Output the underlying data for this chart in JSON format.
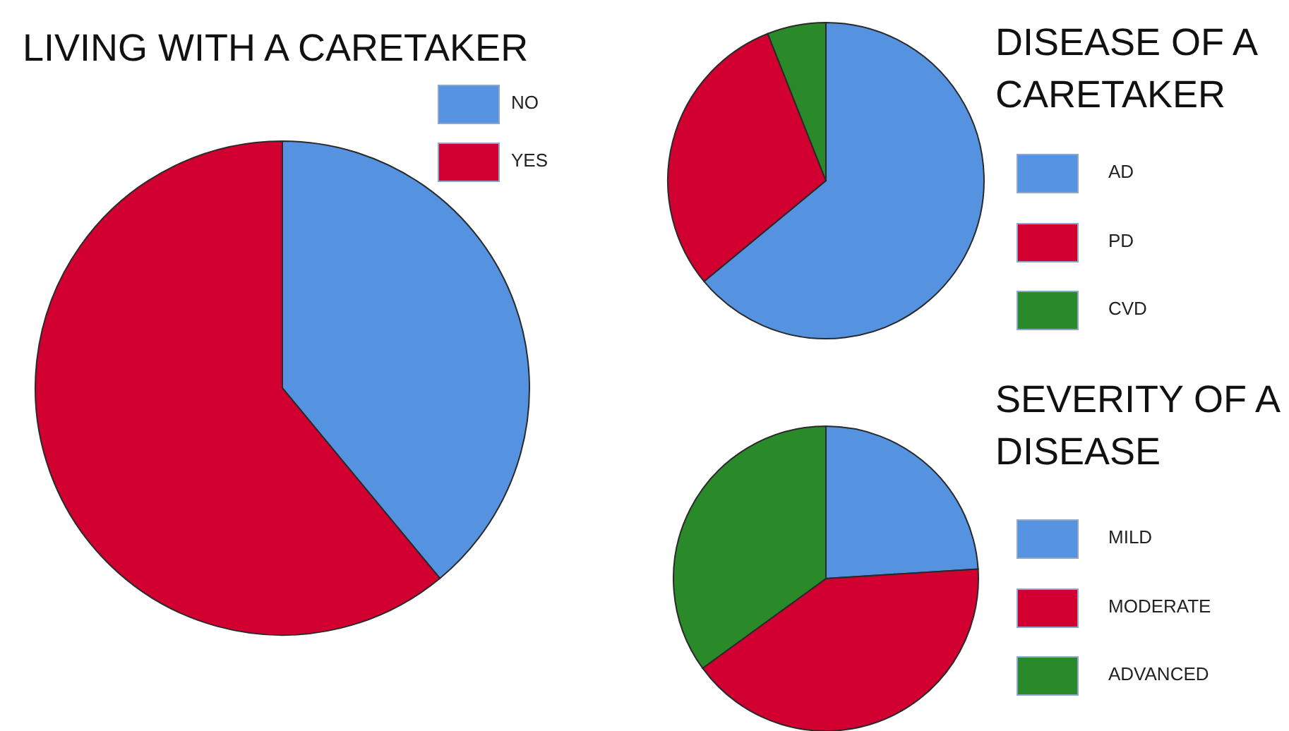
{
  "chart_data": [
    {
      "type": "pie",
      "title": "LIVING WITH A CARETAKER",
      "categories": [
        "NO",
        "YES"
      ],
      "values": [
        39,
        61
      ],
      "colors": [
        "#5592e0",
        "#d10030"
      ],
      "legend": "top right"
    },
    {
      "type": "pie",
      "title": "DISEASE OF A CARETAKER",
      "categories": [
        "AD",
        "PD",
        "CVD"
      ],
      "values": [
        64,
        30,
        6
      ],
      "colors": [
        "#5592e0",
        "#d10030",
        "#2a8a2a"
      ],
      "legend": "right"
    },
    {
      "type": "pie",
      "title": "SEVERITY OF A DISEASE",
      "categories": [
        "MILD",
        "MODERATE",
        "ADVANCED"
      ],
      "values": [
        24,
        41,
        35
      ],
      "colors": [
        "#5592e0",
        "#d10030",
        "#2a8a2a"
      ],
      "legend": "right"
    }
  ]
}
